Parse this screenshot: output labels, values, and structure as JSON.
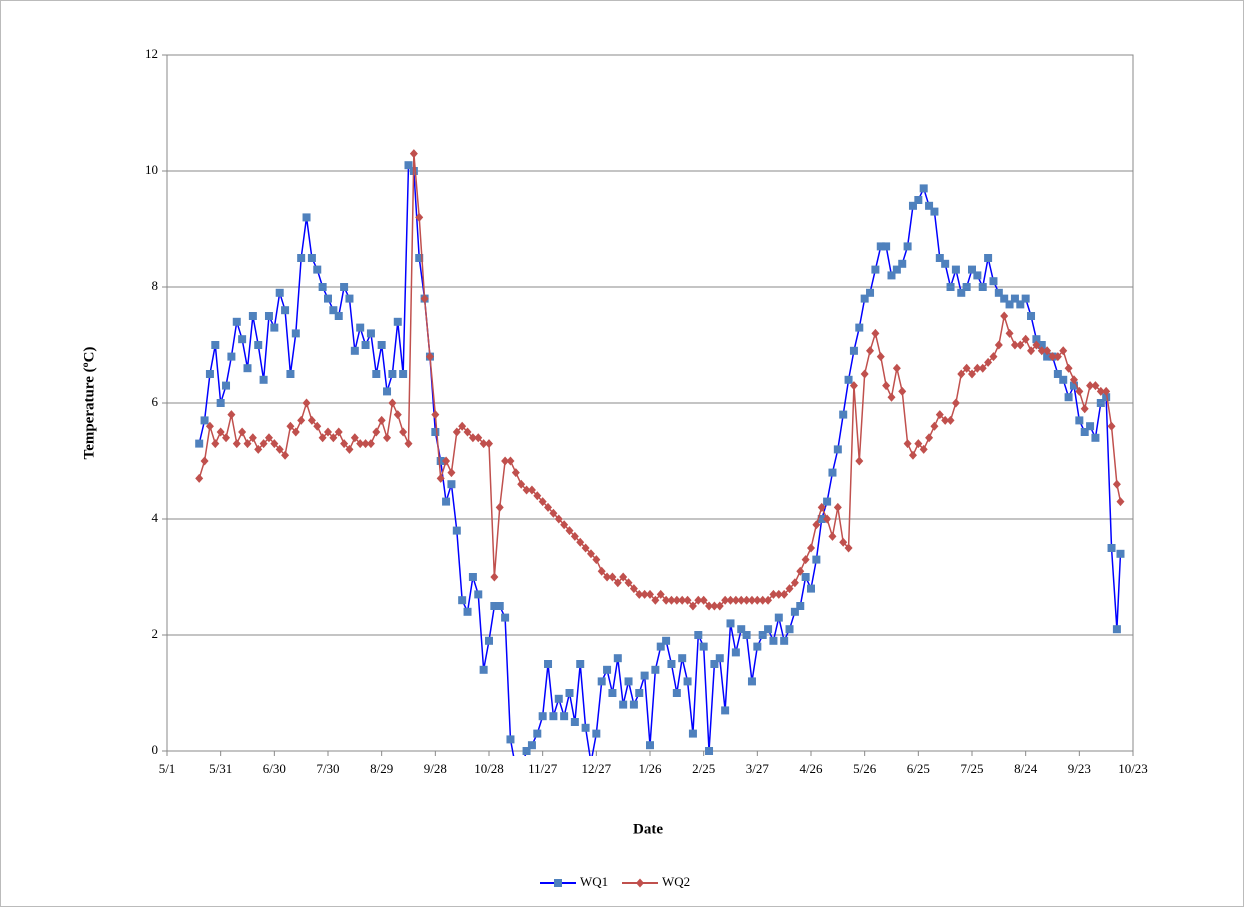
{
  "chart_data": {
    "type": "line",
    "xlabel": "Date",
    "ylabel": "Temperature (ºC)",
    "xlim": [
      0,
      540
    ],
    "ylim": [
      0,
      12
    ],
    "xticks": [
      {
        "value": 0,
        "label": "5/1"
      },
      {
        "value": 30,
        "label": "5/31"
      },
      {
        "value": 60,
        "label": "6/30"
      },
      {
        "value": 90,
        "label": "7/30"
      },
      {
        "value": 120,
        "label": "8/29"
      },
      {
        "value": 150,
        "label": "9/28"
      },
      {
        "value": 180,
        "label": "10/28"
      },
      {
        "value": 210,
        "label": "11/27"
      },
      {
        "value": 240,
        "label": "12/27"
      },
      {
        "value": 270,
        "label": "1/26"
      },
      {
        "value": 300,
        "label": "2/25"
      },
      {
        "value": 330,
        "label": "3/27"
      },
      {
        "value": 360,
        "label": "4/26"
      },
      {
        "value": 390,
        "label": "5/26"
      },
      {
        "value": 420,
        "label": "6/25"
      },
      {
        "value": 450,
        "label": "7/25"
      },
      {
        "value": 480,
        "label": "8/24"
      },
      {
        "value": 510,
        "label": "9/23"
      },
      {
        "value": 540,
        "label": "10/23"
      }
    ],
    "yticks": [
      0,
      2,
      4,
      6,
      8,
      10,
      12
    ],
    "grid": true,
    "legend": "bottom",
    "x": [
      18,
      21,
      24,
      27,
      30,
      33,
      36,
      39,
      42,
      45,
      48,
      51,
      54,
      57,
      60,
      63,
      66,
      69,
      72,
      75,
      78,
      81,
      84,
      87,
      90,
      93,
      96,
      99,
      102,
      105,
      108,
      111,
      114,
      117,
      120,
      123,
      126,
      129,
      132,
      135,
      138,
      141,
      144,
      147,
      150,
      153,
      156,
      159,
      162,
      165,
      168,
      171,
      174,
      177,
      180,
      183,
      186,
      189,
      192,
      195,
      198,
      201,
      204,
      207,
      210,
      213,
      216,
      219,
      222,
      225,
      228,
      231,
      234,
      237,
      240,
      243,
      246,
      249,
      252,
      255,
      258,
      261,
      264,
      267,
      270,
      273,
      276,
      279,
      282,
      285,
      288,
      291,
      294,
      297,
      300,
      303,
      306,
      309,
      312,
      315,
      318,
      321,
      324,
      327,
      330,
      333,
      336,
      339,
      342,
      345,
      348,
      351,
      354,
      357,
      360,
      363,
      366,
      369,
      372,
      375,
      378,
      381,
      384,
      387,
      390,
      393,
      396,
      399,
      402,
      405,
      408,
      411,
      414,
      417,
      420,
      423,
      426,
      429,
      432,
      435,
      438,
      441,
      444,
      447,
      450,
      453,
      456,
      459,
      462,
      465,
      468,
      471,
      474,
      477,
      480,
      483,
      486,
      489,
      492,
      495,
      498,
      501,
      504,
      507,
      510,
      513,
      516,
      519,
      522,
      525,
      528,
      531,
      533
    ],
    "series": [
      {
        "name": "WQ1",
        "color": "#4f81bd",
        "line_color": "#0000ff",
        "marker": "square",
        "values": [
          5.3,
          5.7,
          6.5,
          7.0,
          6.0,
          6.3,
          6.8,
          7.4,
          7.1,
          6.6,
          7.5,
          7.0,
          6.4,
          7.5,
          7.3,
          7.9,
          7.6,
          6.5,
          7.2,
          8.5,
          9.2,
          8.5,
          8.3,
          8.0,
          7.8,
          7.6,
          7.5,
          8.0,
          7.8,
          6.9,
          7.3,
          7.0,
          7.2,
          6.5,
          7.0,
          6.2,
          6.5,
          7.4,
          6.5,
          10.1,
          10.0,
          8.5,
          7.8,
          6.8,
          5.5,
          5.0,
          4.3,
          4.6,
          3.8,
          2.6,
          2.4,
          3.0,
          2.7,
          1.4,
          1.9,
          2.5,
          2.5,
          2.3,
          0.2,
          -0.3,
          -0.3,
          0.0,
          0.1,
          0.3,
          0.6,
          1.5,
          0.6,
          0.9,
          0.6,
          1.0,
          0.5,
          1.5,
          0.4,
          -0.2,
          0.3,
          1.2,
          1.4,
          1.0,
          1.6,
          0.8,
          1.2,
          0.8,
          1.0,
          1.3,
          0.1,
          1.4,
          1.8,
          1.9,
          1.5,
          1.0,
          1.6,
          1.2,
          0.3,
          2.0,
          1.8,
          0.0,
          1.5,
          1.6,
          0.7,
          2.2,
          1.7,
          2.1,
          2.0,
          1.2,
          1.8,
          2.0,
          2.1,
          1.9,
          2.3,
          1.9,
          2.1,
          2.4,
          2.5,
          3.0,
          2.8,
          3.3,
          4.0,
          4.3,
          4.8,
          5.2,
          5.8,
          6.4,
          6.9,
          7.3,
          7.8,
          7.9,
          8.3,
          8.7,
          8.7,
          8.2,
          8.3,
          8.4,
          8.7,
          9.4,
          9.5,
          9.7,
          9.4,
          9.3,
          8.5,
          8.4,
          8.0,
          8.3,
          7.9,
          8.0,
          8.3,
          8.2,
          8.0,
          8.5,
          8.1,
          7.9,
          7.8,
          7.7,
          7.8,
          7.7,
          7.8,
          7.5,
          7.1,
          7.0,
          6.8,
          6.8,
          6.5,
          6.4,
          6.1,
          6.3,
          5.7,
          5.5,
          5.6,
          5.4,
          6.0,
          6.1,
          3.5,
          2.1,
          3.4
        ]
      },
      {
        "name": "WQ2",
        "color": "#c0504d",
        "line_color": "#c0504d",
        "marker": "diamond",
        "values": [
          4.7,
          5.0,
          5.6,
          5.3,
          5.5,
          5.4,
          5.8,
          5.3,
          5.5,
          5.3,
          5.4,
          5.2,
          5.3,
          5.4,
          5.3,
          5.2,
          5.1,
          5.6,
          5.5,
          5.7,
          6.0,
          5.7,
          5.6,
          5.4,
          5.5,
          5.4,
          5.5,
          5.3,
          5.2,
          5.4,
          5.3,
          5.3,
          5.3,
          5.5,
          5.7,
          5.4,
          6.0,
          5.8,
          5.5,
          5.3,
          10.3,
          9.2,
          7.8,
          6.8,
          5.8,
          4.7,
          5.0,
          4.8,
          5.5,
          5.6,
          5.5,
          5.4,
          5.4,
          5.3,
          5.3,
          3.0,
          4.2,
          5.0,
          5.0,
          4.8,
          4.6,
          4.5,
          4.5,
          4.4,
          4.3,
          4.2,
          4.1,
          4.0,
          3.9,
          3.8,
          3.7,
          3.6,
          3.5,
          3.4,
          3.3,
          3.1,
          3.0,
          3.0,
          2.9,
          3.0,
          2.9,
          2.8,
          2.7,
          2.7,
          2.7,
          2.6,
          2.7,
          2.6,
          2.6,
          2.6,
          2.6,
          2.6,
          2.5,
          2.6,
          2.6,
          2.5,
          2.5,
          2.5,
          2.6,
          2.6,
          2.6,
          2.6,
          2.6,
          2.6,
          2.6,
          2.6,
          2.6,
          2.7,
          2.7,
          2.7,
          2.8,
          2.9,
          3.1,
          3.3,
          3.5,
          3.9,
          4.2,
          4.0,
          3.7,
          4.2,
          3.6,
          3.5,
          6.3,
          5.0,
          6.5,
          6.9,
          7.2,
          6.8,
          6.3,
          6.1,
          6.6,
          6.2,
          5.3,
          5.1,
          5.3,
          5.2,
          5.4,
          5.6,
          5.8,
          5.7,
          5.7,
          6.0,
          6.5,
          6.6,
          6.5,
          6.6,
          6.6,
          6.7,
          6.8,
          7.0,
          7.5,
          7.2,
          7.0,
          7.0,
          7.1,
          6.9,
          7.0,
          6.9,
          6.9,
          6.8,
          6.8,
          6.9,
          6.6,
          6.4,
          6.2,
          5.9,
          6.3,
          6.3,
          6.2,
          6.2,
          5.6,
          4.6,
          4.3
        ]
      }
    ]
  }
}
